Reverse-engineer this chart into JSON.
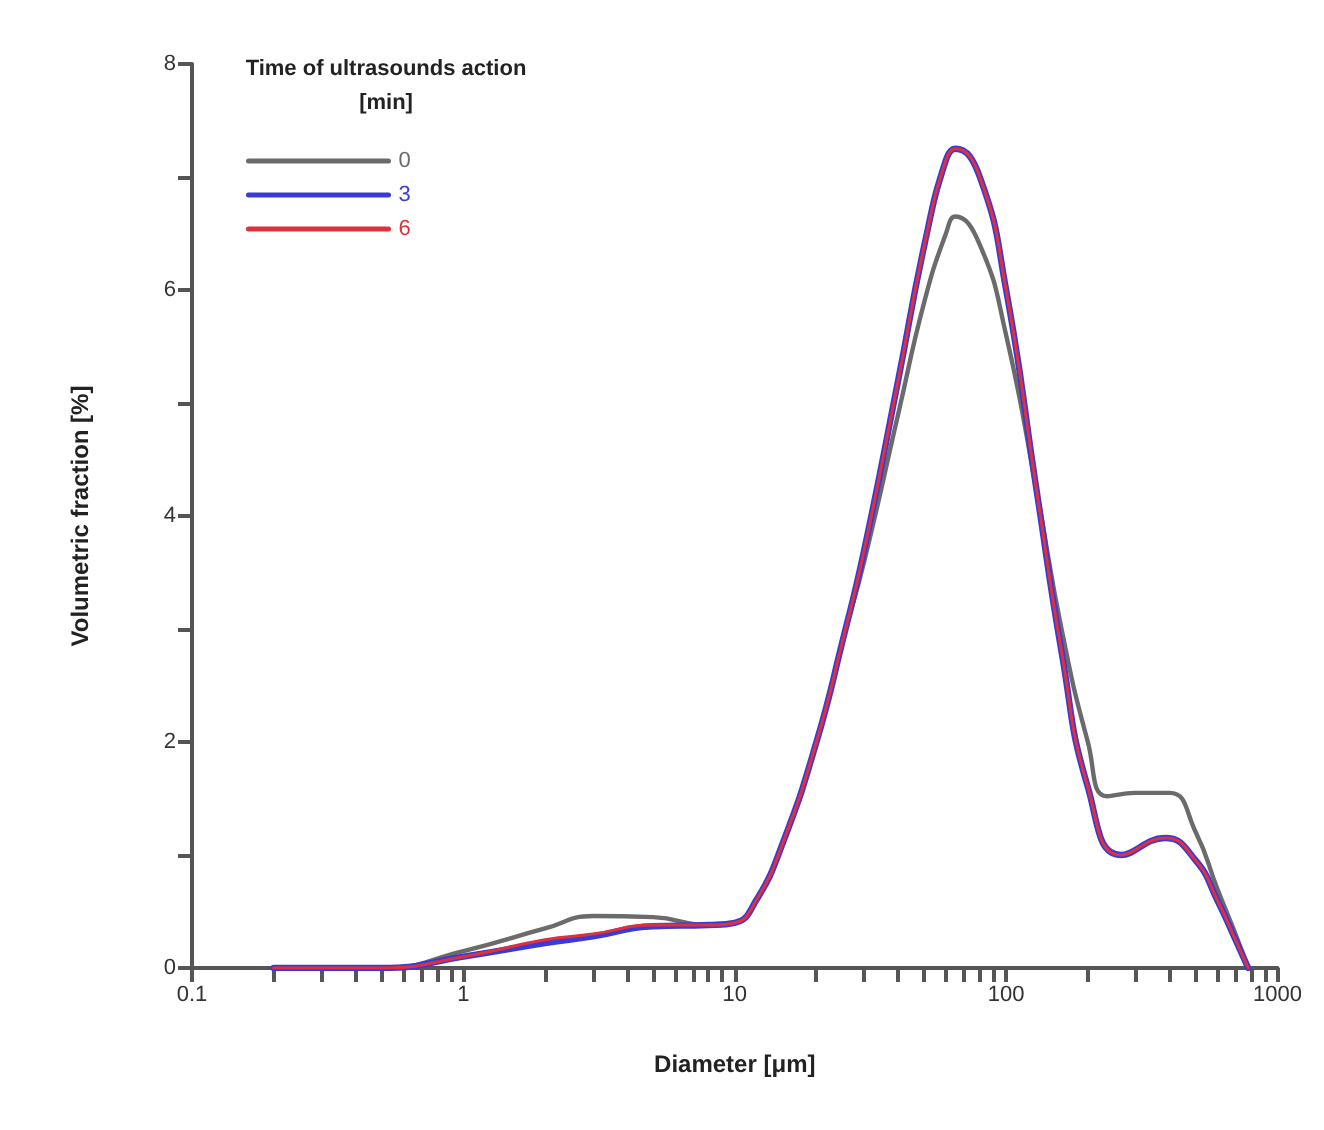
{
  "chart_data": {
    "type": "line",
    "xlabel": "Diameter [μm]",
    "ylabel": "Volumetric fraction [%]",
    "legend_title": "Time of ultrasounds action [min]",
    "legend": "top left",
    "log": "x",
    "grid": false,
    "marker": "none",
    "line_style": "solid",
    "xlim": [
      0.1,
      1000
    ],
    "xticks": [
      0.1,
      {
        "value": 0.2,
        "label": null
      },
      {
        "value": 0.3,
        "label": null
      },
      {
        "value": 0.4,
        "label": null
      },
      {
        "value": 0.5,
        "label": null
      },
      {
        "value": 0.6,
        "label": null
      },
      {
        "value": 0.7,
        "label": null
      },
      {
        "value": 0.8,
        "label": null
      },
      {
        "value": 0.9,
        "label": null
      },
      1,
      {
        "value": 2,
        "label": null
      },
      {
        "value": 3,
        "label": null
      },
      {
        "value": 4,
        "label": null
      },
      {
        "value": 5,
        "label": null
      },
      {
        "value": 6,
        "label": null
      },
      {
        "value": 7,
        "label": null
      },
      {
        "value": 8,
        "label": null
      },
      {
        "value": 9,
        "label": null
      },
      10,
      {
        "value": 20,
        "label": null
      },
      {
        "value": 30,
        "label": null
      },
      {
        "value": 40,
        "label": null
      },
      {
        "value": 50,
        "label": null
      },
      {
        "value": 60,
        "label": null
      },
      {
        "value": 70,
        "label": null
      },
      {
        "value": 80,
        "label": null
      },
      {
        "value": 90,
        "label": null
      },
      100,
      {
        "value": 200,
        "label": null
      },
      {
        "value": 300,
        "label": null
      },
      {
        "value": 400,
        "label": null
      },
      {
        "value": 500,
        "label": null
      },
      {
        "value": 600,
        "label": null
      },
      {
        "value": 700,
        "label": null
      },
      {
        "value": 800,
        "label": null
      },
      {
        "value": 900,
        "label": null
      },
      1000
    ],
    "ylim": [
      0,
      8
    ],
    "yticks": [
      0,
      {
        "value": 1,
        "label": null
      },
      2,
      {
        "value": 3,
        "label": null
      },
      4,
      {
        "value": 5,
        "label": null
      },
      6,
      {
        "value": 7,
        "label": null
      },
      8
    ],
    "series": [
      {
        "name": "0",
        "color": "#6b6b6b",
        "x": [
          0.2,
          0.5,
          1,
          2,
          3,
          5,
          8,
          10,
          12,
          15,
          20,
          25,
          30,
          40,
          50,
          60,
          65,
          80,
          100,
          130,
          160,
          200,
          235,
          300,
          400,
          500,
          600,
          700,
          780
        ],
        "values": [
          0,
          0,
          0.15,
          0.35,
          0.46,
          0.45,
          0.38,
          0.4,
          0.6,
          1.1,
          2.0,
          2.9,
          3.6,
          4.9,
          5.9,
          6.5,
          6.65,
          6.4,
          5.6,
          4.2,
          3.0,
          2.0,
          1.52,
          1.55,
          1.55,
          1.2,
          0.7,
          0.3,
          0
        ]
      },
      {
        "name": "3",
        "color": "#3a3ad8",
        "x": [
          0.2,
          0.5,
          1,
          2,
          3,
          5,
          8,
          10,
          12,
          15,
          20,
          25,
          30,
          40,
          50,
          60,
          65,
          80,
          100,
          130,
          160,
          200,
          265,
          385,
          500,
          600,
          700,
          780
        ],
        "values": [
          0,
          0,
          0.1,
          0.22,
          0.28,
          0.37,
          0.38,
          0.4,
          0.6,
          1.1,
          2.0,
          2.9,
          3.7,
          5.2,
          6.4,
          7.15,
          7.25,
          7.0,
          6.0,
          4.2,
          2.8,
          1.6,
          1.0,
          1.15,
          0.95,
          0.6,
          0.25,
          0
        ]
      },
      {
        "name": "6",
        "color": "#e0303a",
        "x": [
          0.2,
          0.5,
          1,
          2,
          3,
          5,
          8,
          10,
          12,
          15,
          20,
          25,
          30,
          40,
          50,
          60,
          65,
          80,
          100,
          130,
          160,
          200,
          265,
          385,
          500,
          600,
          700,
          780
        ],
        "values": [
          0,
          0,
          0.1,
          0.25,
          0.3,
          0.38,
          0.38,
          0.4,
          0.6,
          1.1,
          2.0,
          2.9,
          3.7,
          5.2,
          6.4,
          7.15,
          7.25,
          7.0,
          6.0,
          4.2,
          2.8,
          1.6,
          1.0,
          1.15,
          0.95,
          0.6,
          0.25,
          0
        ]
      }
    ]
  }
}
